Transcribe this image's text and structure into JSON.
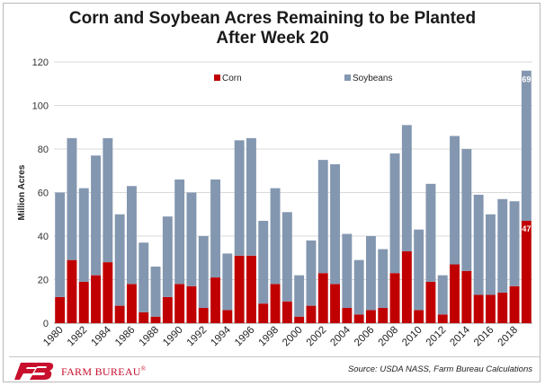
{
  "chart_data": {
    "type": "bar",
    "stacked": true,
    "title": [
      "Corn and Soybean Acres Remaining to be Planted",
      "After Week 20"
    ],
    "xlabel": "",
    "ylabel": "Million Acres",
    "ylim": [
      0,
      120
    ],
    "yticks": [
      0,
      20,
      40,
      60,
      80,
      100,
      120
    ],
    "categories": [
      "1980",
      "1981",
      "1982",
      "1983",
      "1984",
      "1985",
      "1986",
      "1987",
      "1988",
      "1989",
      "1990",
      "1991",
      "1992",
      "1993",
      "1994",
      "1995",
      "1996",
      "1997",
      "1998",
      "1999",
      "2000",
      "2001",
      "2002",
      "2003",
      "2004",
      "2005",
      "2006",
      "2007",
      "2008",
      "2009",
      "2010",
      "2011",
      "2012",
      "2013",
      "2014",
      "2015",
      "2016",
      "2017",
      "2018",
      "2019"
    ],
    "xtick_labels": [
      "1980",
      "1982",
      "1984",
      "1986",
      "1988",
      "1990",
      "1992",
      "1994",
      "1996",
      "1998",
      "2000",
      "2002",
      "2004",
      "2006",
      "2008",
      "2010",
      "2012",
      "2014",
      "2016",
      "2018"
    ],
    "series": [
      {
        "name": "Corn",
        "color": "#c00000",
        "values": [
          12,
          29,
          19,
          22,
          28,
          8,
          18,
          5,
          3,
          12,
          18,
          17,
          7,
          21,
          6,
          31,
          31,
          9,
          18,
          10,
          3,
          8,
          23,
          18,
          7,
          4,
          6,
          7,
          23,
          33,
          6,
          19,
          4,
          27,
          24,
          13,
          13,
          14,
          17,
          47
        ]
      },
      {
        "name": "Soybeans",
        "color": "#8497b0",
        "values": [
          48,
          56,
          43,
          55,
          57,
          42,
          45,
          32,
          23,
          37,
          48,
          43,
          33,
          45,
          26,
          53,
          54,
          38,
          44,
          41,
          19,
          30,
          52,
          55,
          34,
          25,
          34,
          27,
          55,
          58,
          37,
          45,
          18,
          59,
          56,
          46,
          37,
          43,
          39,
          69
        ]
      }
    ],
    "data_labels": {
      "corn_last": "47",
      "soybeans_last": "69"
    },
    "legend_position": "top-center",
    "grid": true
  },
  "footer": {
    "brand": "FARM BUREAU",
    "registered": "®",
    "source": "Source: USDA NASS, Farm Bureau Calculations"
  }
}
